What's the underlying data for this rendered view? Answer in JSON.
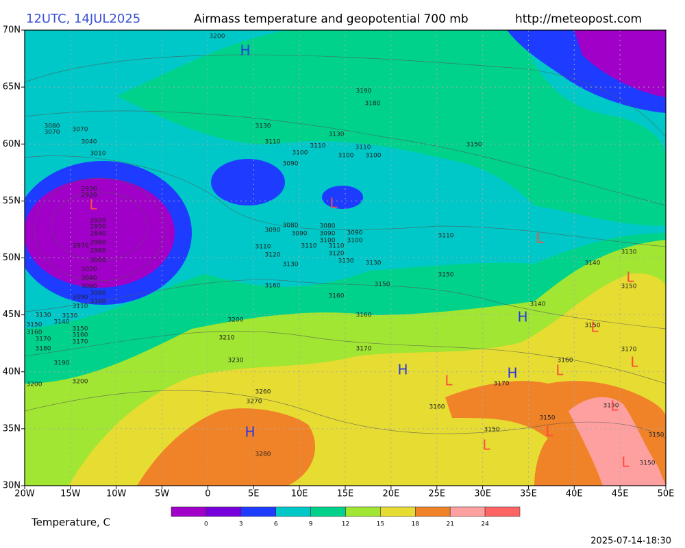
{
  "header": {
    "run": "12UTC, 14JUL2025",
    "title": "Airmass temperature and geopotential 700 mb",
    "url": "http://meteopost.com"
  },
  "map": {
    "xlim": [
      -20,
      50
    ],
    "ylim": [
      30,
      70
    ],
    "xticks": [
      {
        "value": -20,
        "label": "20W"
      },
      {
        "value": -15,
        "label": "15W"
      },
      {
        "value": -10,
        "label": "10W"
      },
      {
        "value": -5,
        "label": "5W"
      },
      0,
      {
        "value": 5,
        "label": "5E"
      },
      {
        "value": 10,
        "label": "10E"
      },
      {
        "value": 15,
        "label": "15E"
      },
      {
        "value": 20,
        "label": "20E"
      },
      {
        "value": 25,
        "label": "25E"
      },
      {
        "value": 30,
        "label": "30E"
      },
      {
        "value": 35,
        "label": "35E"
      },
      {
        "value": 40,
        "label": "40E"
      },
      {
        "value": 45,
        "label": "45E"
      },
      {
        "value": 50,
        "label": "50E"
      }
    ],
    "yticks": [
      {
        "value": 70,
        "label": "70N"
      },
      {
        "value": 65,
        "label": "65N"
      },
      {
        "value": 60,
        "label": "60N"
      },
      {
        "value": 55,
        "label": "55N"
      },
      {
        "value": 50,
        "label": "50N"
      },
      {
        "value": 45,
        "label": "45N"
      },
      {
        "value": 40,
        "label": "40N"
      },
      {
        "value": 35,
        "label": "35N"
      },
      {
        "value": 30,
        "label": "30N"
      }
    ],
    "grid": true,
    "pressure_centers": [
      "H",
      "L",
      "L",
      "L",
      "L",
      "H",
      "L",
      "L",
      "H",
      "H",
      "L",
      "L",
      "L",
      "H",
      "L",
      "L",
      "L"
    ],
    "high_color": "#2b35e6",
    "low_color": "#ff4b3a",
    "contour_labels": [
      "3200",
      "3190",
      "3180",
      "3130",
      "3110",
      "3130",
      "3110",
      "3100",
      "3110",
      "3100",
      "3100",
      "3090",
      "3150",
      "3080",
      "3070",
      "3070",
      "3040",
      "3010",
      "2930",
      "2920",
      "2920",
      "2930",
      "2840",
      "2960",
      "2970",
      "2980",
      "3000",
      "3020",
      "3040",
      "3060",
      "3080",
      "3090",
      "3100",
      "3110",
      "3130",
      "3130",
      "3140",
      "3150",
      "3160",
      "3150",
      "3160",
      "3170",
      "3170",
      "3180",
      "3190",
      "3200",
      "3200",
      "3080",
      "3090",
      "3090",
      "3080",
      "3090",
      "3100",
      "3090",
      "3100",
      "3110",
      "3110",
      "3110",
      "3120",
      "3120",
      "3130",
      "3130",
      "3130",
      "3110",
      "3160",
      "3150",
      "3150",
      "3160",
      "3160",
      "3140",
      "3130",
      "3150",
      "3140",
      "3150",
      "3200",
      "3210",
      "3170",
      "3170",
      "3160",
      "3230",
      "3260",
      "3270",
      "3170",
      "3160",
      "3150",
      "3150",
      "3150",
      "3150",
      "3150",
      "3280"
    ]
  },
  "colorbar": {
    "title": "Temperature, C",
    "colors": [
      "#a000c8",
      "#7800dc",
      "#1e3cff",
      "#00c8c8",
      "#00d28c",
      "#a0e632",
      "#e6dc32",
      "#f08228",
      "#ffa0a0",
      "#ff6464"
    ],
    "ticks": [
      0,
      3,
      6,
      9,
      12,
      15,
      18,
      21,
      24
    ]
  },
  "timestamp": "2025-07-14-18:30"
}
